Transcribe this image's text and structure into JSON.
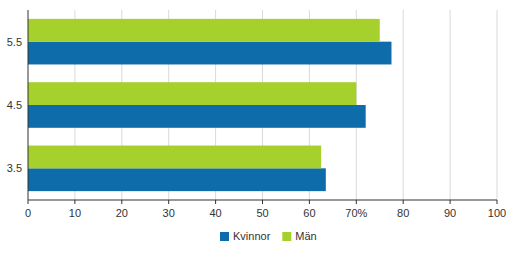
{
  "chart_data": {
    "type": "bar",
    "orientation": "horizontal",
    "grid": true,
    "legend": "bottom",
    "categories": [
      "3.5",
      "4.5",
      "5.5"
    ],
    "series": [
      {
        "name": "Kvinnor",
        "color": "#0f6cab",
        "values": [
          63.5,
          72,
          77.5
        ]
      },
      {
        "name": "Män",
        "color": "#a6d02c",
        "values": [
          62.5,
          70,
          75
        ]
      }
    ],
    "xlim": [
      0,
      100
    ],
    "xticks": [
      0,
      10,
      20,
      30,
      40,
      50,
      60,
      {
        "value": 70,
        "label": "70%"
      },
      80,
      90,
      100
    ]
  }
}
